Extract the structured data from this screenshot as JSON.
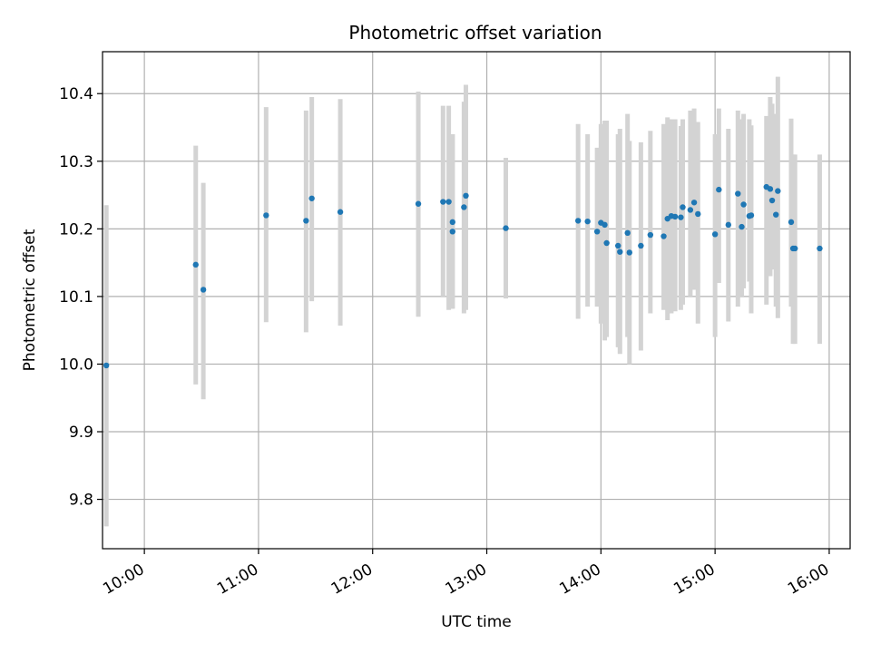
{
  "chart_data": {
    "type": "scatter",
    "title": "Photometric offset variation",
    "xlabel": "UTC time",
    "ylabel": "Photometric offset",
    "x_ticks": [
      "10:00",
      "11:00",
      "12:00",
      "13:00",
      "14:00",
      "15:00",
      "16:00"
    ],
    "y_ticks": [
      "9.8",
      "9.9",
      "10.0",
      "10.1",
      "10.2",
      "10.3",
      "10.4"
    ],
    "xlim": [
      "09:38",
      "16:11"
    ],
    "ylim": [
      9.727,
      10.462
    ],
    "grid": true,
    "colors": {
      "point": "#1f77b4",
      "errorbar": "#d3d3d3",
      "grid": "#b0b0b0"
    },
    "series": [
      {
        "x": [
          "09:40",
          "10:27",
          "10:31",
          "11:04",
          "11:25",
          "11:28",
          "11:43",
          "12:24",
          "12:37",
          "12:40",
          "12:42",
          "12:42",
          "12:48",
          "12:49",
          "13:10",
          "13:48",
          "13:53",
          "13:58",
          "14:00",
          "14:02",
          "14:03",
          "14:09",
          "14:10",
          "14:14",
          "14:15",
          "14:21",
          "14:26",
          "14:33",
          "14:35",
          "14:37",
          "14:39",
          "14:42",
          "14:43",
          "14:47",
          "14:49",
          "14:51",
          "15:00",
          "15:02",
          "15:07",
          "15:12",
          "15:14",
          "15:15",
          "15:18",
          "15:19",
          "15:27",
          "15:29",
          "15:30",
          "15:32",
          "15:33",
          "15:40",
          "15:41",
          "15:42",
          "15:55"
        ],
        "y": [
          9.998,
          10.147,
          10.11,
          10.22,
          10.212,
          10.245,
          10.225,
          10.237,
          10.24,
          10.24,
          10.21,
          10.196,
          10.232,
          10.249,
          10.201,
          10.212,
          10.211,
          10.196,
          10.209,
          10.206,
          10.179,
          10.175,
          10.166,
          10.194,
          10.165,
          10.175,
          10.191,
          10.189,
          10.215,
          10.219,
          10.218,
          10.217,
          10.232,
          10.228,
          10.239,
          10.222,
          10.192,
          10.258,
          10.206,
          10.252,
          10.203,
          10.236,
          10.219,
          10.22,
          10.262,
          10.259,
          10.242,
          10.221,
          10.256,
          10.21,
          10.171,
          10.171,
          10.171
        ],
        "err_low": [
          9.76,
          9.97,
          9.948,
          10.062,
          10.047,
          10.093,
          10.057,
          10.07,
          10.1,
          10.08,
          10.082,
          10.082,
          10.075,
          10.08,
          10.097,
          10.067,
          10.085,
          10.085,
          10.06,
          10.035,
          10.04,
          10.025,
          10.015,
          10.04,
          10.0,
          10.02,
          10.075,
          10.08,
          10.065,
          10.075,
          10.078,
          10.08,
          10.088,
          10.1,
          10.11,
          10.06,
          10.04,
          10.12,
          10.063,
          10.085,
          10.1,
          10.112,
          10.122,
          10.075,
          10.088,
          10.13,
          10.14,
          10.085,
          10.068,
          10.085,
          10.03,
          10.03,
          10.03
        ],
        "err_high": [
          10.235,
          10.323,
          10.268,
          10.38,
          10.375,
          10.395,
          10.392,
          10.403,
          10.382,
          10.382,
          10.34,
          10.34,
          10.388,
          10.413,
          10.305,
          10.355,
          10.34,
          10.32,
          10.355,
          10.36,
          10.36,
          10.34,
          10.348,
          10.37,
          10.33,
          10.328,
          10.345,
          10.355,
          10.365,
          10.362,
          10.362,
          10.352,
          10.362,
          10.375,
          10.378,
          10.358,
          10.34,
          10.378,
          10.348,
          10.375,
          10.362,
          10.37,
          10.362,
          10.353,
          10.367,
          10.395,
          10.385,
          10.37,
          10.425,
          10.363,
          10.31,
          10.31,
          10.31
        ]
      }
    ]
  }
}
